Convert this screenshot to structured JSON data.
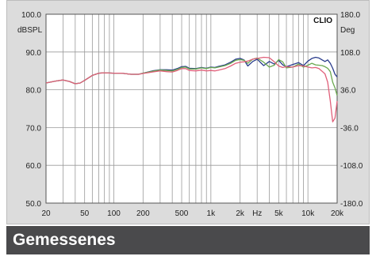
{
  "caption": "Gemessenes",
  "chart_data": {
    "type": "line",
    "brand_label": "CLIO",
    "left_unit": "dBSPL",
    "right_unit": "Deg",
    "x_scale": "log",
    "xlim": [
      20,
      20000
    ],
    "ylim": [
      50,
      100
    ],
    "y2lim": [
      -180,
      180
    ],
    "grid": true,
    "y_ticks": [
      {
        "v": 100,
        "label": "100.0"
      },
      {
        "v": 90,
        "label": "90.0"
      },
      {
        "v": 80,
        "label": "80.0"
      },
      {
        "v": 70,
        "label": "70.0"
      },
      {
        "v": 60,
        "label": "60.0"
      },
      {
        "v": 50,
        "label": "50.0"
      }
    ],
    "y2_ticks": [
      {
        "v": 180,
        "label": "180.0"
      },
      {
        "v": 108,
        "label": "108.0"
      },
      {
        "v": 36,
        "label": "36.0"
      },
      {
        "v": -36,
        "label": "-36.0"
      },
      {
        "v": -108,
        "label": "-108.0"
      },
      {
        "v": -180,
        "label": "-180.0"
      }
    ],
    "x_ticks": [
      {
        "v": 20,
        "label": "20"
      },
      {
        "v": 50,
        "label": "50"
      },
      {
        "v": 100,
        "label": "100"
      },
      {
        "v": 200,
        "label": "200"
      },
      {
        "v": 500,
        "label": "500"
      },
      {
        "v": 1000,
        "label": "1k"
      },
      {
        "v": 2000,
        "label": "2k"
      },
      {
        "v": 3000,
        "label": "Hz"
      },
      {
        "v": 5000,
        "label": "5k"
      },
      {
        "v": 10000,
        "label": "10k"
      },
      {
        "v": 20000,
        "label": "20k"
      }
    ],
    "series": [
      {
        "color": "#2a3c8c",
        "points": [
          [
            20,
            81.8
          ],
          [
            25,
            82.3
          ],
          [
            30,
            82.6
          ],
          [
            35,
            82.2
          ],
          [
            40,
            81.6
          ],
          [
            45,
            81.8
          ],
          [
            50,
            82.5
          ],
          [
            60,
            83.8
          ],
          [
            70,
            84.4
          ],
          [
            80,
            84.5
          ],
          [
            100,
            84.4
          ],
          [
            120,
            84.4
          ],
          [
            150,
            84.1
          ],
          [
            180,
            84.1
          ],
          [
            200,
            84.4
          ],
          [
            250,
            85.0
          ],
          [
            300,
            85.3
          ],
          [
            350,
            85.3
          ],
          [
            400,
            85.2
          ],
          [
            450,
            85.6
          ],
          [
            500,
            86.1
          ],
          [
            550,
            86.2
          ],
          [
            600,
            85.7
          ],
          [
            700,
            85.6
          ],
          [
            800,
            85.9
          ],
          [
            900,
            85.7
          ],
          [
            1000,
            86.0
          ],
          [
            1100,
            85.9
          ],
          [
            1200,
            86.2
          ],
          [
            1400,
            86.6
          ],
          [
            1600,
            87.3
          ],
          [
            1800,
            88.1
          ],
          [
            2000,
            88.3
          ],
          [
            2200,
            87.9
          ],
          [
            2400,
            86.3
          ],
          [
            2700,
            87.5
          ],
          [
            3000,
            88.1
          ],
          [
            3500,
            86.4
          ],
          [
            4000,
            87.5
          ],
          [
            4500,
            86.8
          ],
          [
            5000,
            87.8
          ],
          [
            5500,
            86.6
          ],
          [
            6000,
            86.1
          ],
          [
            7000,
            86.7
          ],
          [
            8000,
            87.2
          ],
          [
            9000,
            86.4
          ],
          [
            10000,
            87.6
          ],
          [
            11000,
            88.3
          ],
          [
            12000,
            88.6
          ],
          [
            13000,
            88.4
          ],
          [
            14000,
            87.9
          ],
          [
            15000,
            87.5
          ],
          [
            16000,
            87.9
          ],
          [
            17000,
            87.0
          ],
          [
            18000,
            85.7
          ],
          [
            19000,
            84.1
          ],
          [
            20000,
            83.4
          ]
        ]
      },
      {
        "color": "#6aa84f",
        "points": [
          [
            20,
            81.8
          ],
          [
            25,
            82.3
          ],
          [
            30,
            82.6
          ],
          [
            35,
            82.2
          ],
          [
            40,
            81.6
          ],
          [
            45,
            81.8
          ],
          [
            50,
            82.5
          ],
          [
            60,
            83.8
          ],
          [
            70,
            84.4
          ],
          [
            80,
            84.5
          ],
          [
            100,
            84.4
          ],
          [
            120,
            84.4
          ],
          [
            150,
            84.1
          ],
          [
            180,
            84.1
          ],
          [
            200,
            84.4
          ],
          [
            250,
            84.9
          ],
          [
            300,
            85.2
          ],
          [
            350,
            85.1
          ],
          [
            400,
            85.0
          ],
          [
            450,
            85.4
          ],
          [
            500,
            85.9
          ],
          [
            550,
            86.0
          ],
          [
            600,
            85.5
          ],
          [
            700,
            85.5
          ],
          [
            800,
            85.8
          ],
          [
            900,
            85.6
          ],
          [
            1000,
            85.9
          ],
          [
            1100,
            85.8
          ],
          [
            1200,
            86.0
          ],
          [
            1400,
            86.4
          ],
          [
            1600,
            87.0
          ],
          [
            1800,
            87.8
          ],
          [
            2000,
            88.0
          ],
          [
            2200,
            87.8
          ],
          [
            2400,
            87.0
          ],
          [
            2700,
            88.1
          ],
          [
            3000,
            88.4
          ],
          [
            3500,
            87.3
          ],
          [
            4000,
            86.0
          ],
          [
            4500,
            86.5
          ],
          [
            5000,
            88.0
          ],
          [
            5500,
            87.4
          ],
          [
            6000,
            85.8
          ],
          [
            7000,
            86.0
          ],
          [
            8000,
            86.8
          ],
          [
            9000,
            86.0
          ],
          [
            10000,
            86.5
          ],
          [
            11000,
            87.0
          ],
          [
            12000,
            86.6
          ],
          [
            13000,
            86.5
          ],
          [
            14000,
            86.4
          ],
          [
            15000,
            86.1
          ],
          [
            16000,
            85.7
          ],
          [
            17000,
            84.8
          ],
          [
            18000,
            82.0
          ],
          [
            19000,
            80.5
          ],
          [
            20000,
            78.5
          ]
        ]
      },
      {
        "color": "#e0607a",
        "points": [
          [
            20,
            81.8
          ],
          [
            25,
            82.3
          ],
          [
            30,
            82.6
          ],
          [
            35,
            82.2
          ],
          [
            40,
            81.6
          ],
          [
            45,
            81.8
          ],
          [
            50,
            82.5
          ],
          [
            60,
            83.8
          ],
          [
            70,
            84.4
          ],
          [
            80,
            84.5
          ],
          [
            100,
            84.4
          ],
          [
            120,
            84.4
          ],
          [
            150,
            84.1
          ],
          [
            180,
            84.1
          ],
          [
            200,
            84.3
          ],
          [
            250,
            84.7
          ],
          [
            300,
            85.0
          ],
          [
            350,
            84.8
          ],
          [
            400,
            84.7
          ],
          [
            450,
            85.1
          ],
          [
            500,
            85.6
          ],
          [
            550,
            85.6
          ],
          [
            600,
            85.1
          ],
          [
            700,
            85.0
          ],
          [
            800,
            85.2
          ],
          [
            900,
            85.0
          ],
          [
            1000,
            85.1
          ],
          [
            1100,
            85.0
          ],
          [
            1200,
            85.2
          ],
          [
            1400,
            85.6
          ],
          [
            1600,
            86.3
          ],
          [
            1800,
            87.0
          ],
          [
            2000,
            87.3
          ],
          [
            2200,
            87.4
          ],
          [
            2400,
            87.6
          ],
          [
            2700,
            88.1
          ],
          [
            3000,
            88.3
          ],
          [
            3500,
            88.6
          ],
          [
            4000,
            88.5
          ],
          [
            4500,
            87.4
          ],
          [
            5000,
            86.3
          ],
          [
            5500,
            85.9
          ],
          [
            6000,
            86.1
          ],
          [
            7000,
            86.0
          ],
          [
            8000,
            86.4
          ],
          [
            9000,
            86.3
          ],
          [
            10000,
            86.0
          ],
          [
            11000,
            85.8
          ],
          [
            12000,
            85.9
          ],
          [
            13000,
            85.6
          ],
          [
            14000,
            84.9
          ],
          [
            15000,
            84.2
          ],
          [
            16000,
            82.0
          ],
          [
            17000,
            77.0
          ],
          [
            18000,
            71.5
          ],
          [
            19000,
            72.5
          ],
          [
            20000,
            77.0
          ]
        ]
      }
    ]
  }
}
